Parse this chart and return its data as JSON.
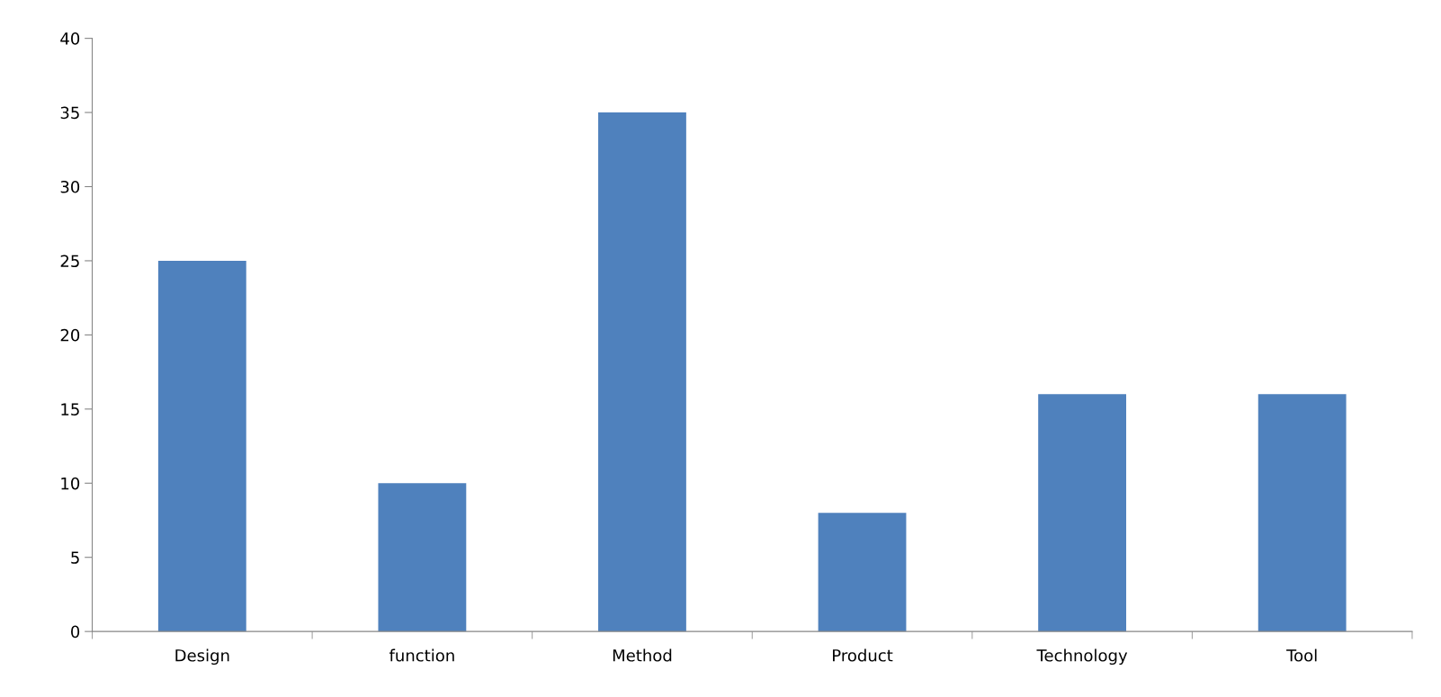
{
  "chart_data": {
    "type": "bar",
    "categories": [
      "Design",
      "function",
      "Method",
      "Product",
      "Technology",
      "Tool"
    ],
    "values": [
      25,
      10,
      35,
      8,
      16,
      16
    ],
    "color": "#4f81bd",
    "ylim": [
      0,
      40
    ],
    "yticks": [
      0,
      5,
      10,
      15,
      20,
      25,
      30,
      35,
      40
    ],
    "grid": false,
    "legend": false
  }
}
